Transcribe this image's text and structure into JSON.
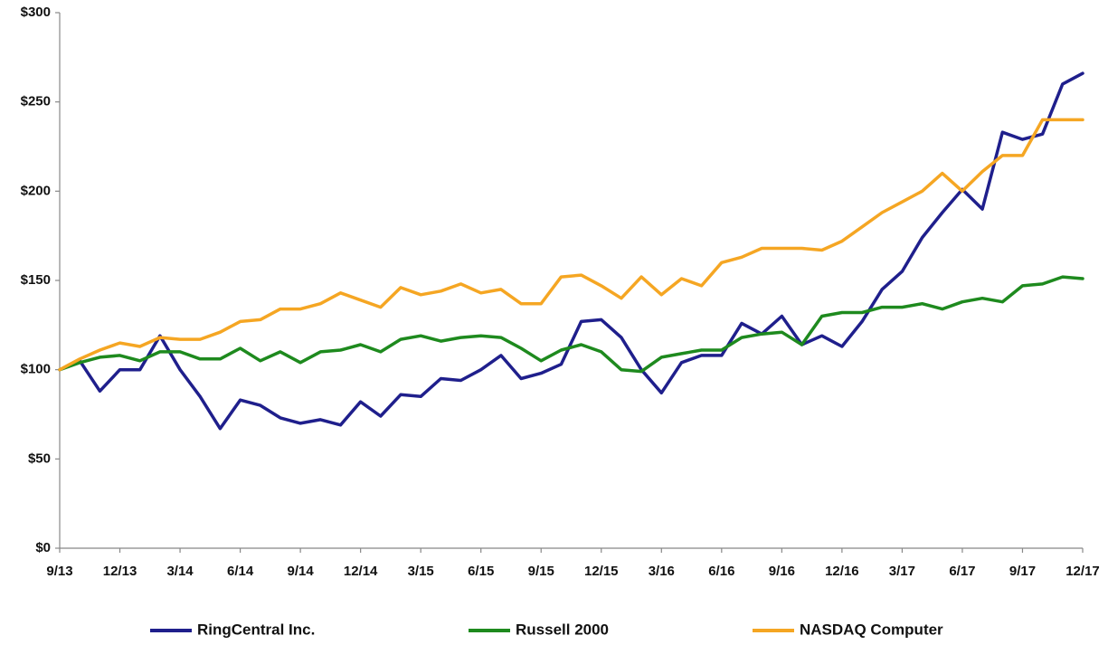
{
  "chart_data": {
    "type": "line",
    "categories": [
      "9/13",
      null,
      null,
      "12/13",
      null,
      null,
      "3/14",
      null,
      null,
      "6/14",
      null,
      null,
      "9/14",
      null,
      null,
      "12/14",
      null,
      null,
      "3/15",
      null,
      null,
      "6/15",
      null,
      null,
      "9/15",
      null,
      null,
      "12/15",
      null,
      null,
      "3/16",
      null,
      null,
      "6/16",
      null,
      null,
      "9/16",
      null,
      null,
      "12/16",
      null,
      null,
      "3/17",
      null,
      null,
      "6/17",
      null,
      null,
      "9/17",
      null,
      null,
      "12/17"
    ],
    "series": [
      {
        "name": "RingCentral Inc.",
        "color": "#1f1f8c",
        "values": [
          100,
          105,
          88,
          100,
          100,
          119,
          100,
          85,
          67,
          83,
          80,
          73,
          70,
          72,
          69,
          82,
          74,
          86,
          85,
          95,
          94,
          100,
          108,
          95,
          98,
          103,
          127,
          128,
          118,
          100,
          87,
          104,
          108,
          108,
          126,
          120,
          130,
          114,
          119,
          113,
          127,
          145,
          155,
          174,
          188,
          201,
          190,
          233,
          229,
          232,
          260,
          266
        ]
      },
      {
        "name": "Russell 2000",
        "color": "#1e8a1e",
        "values": [
          100,
          104,
          107,
          108,
          105,
          110,
          110,
          106,
          106,
          112,
          105,
          110,
          104,
          110,
          111,
          114,
          110,
          117,
          119,
          116,
          118,
          119,
          118,
          112,
          105,
          111,
          114,
          110,
          100,
          99,
          107,
          109,
          111,
          111,
          118,
          120,
          121,
          114,
          130,
          132,
          132,
          135,
          135,
          137,
          134,
          138,
          140,
          138,
          147,
          148,
          152,
          151
        ]
      },
      {
        "name": "NASDAQ Computer",
        "color": "#f5a623",
        "values": [
          100,
          106,
          111,
          115,
          113,
          118,
          117,
          117,
          121,
          127,
          128,
          134,
          134,
          137,
          143,
          139,
          135,
          146,
          142,
          144,
          148,
          143,
          145,
          137,
          137,
          152,
          153,
          147,
          140,
          152,
          142,
          151,
          147,
          160,
          163,
          168,
          168,
          168,
          167,
          172,
          180,
          188,
          194,
          200,
          210,
          200,
          211,
          220,
          220,
          240,
          240,
          240
        ]
      }
    ],
    "ylim": [
      0,
      300
    ],
    "yticks": [
      {
        "value": 0,
        "label": "$0"
      },
      {
        "value": 50,
        "label": "$50"
      },
      {
        "value": 100,
        "label": "$100"
      },
      {
        "value": 150,
        "label": "$150"
      },
      {
        "value": 200,
        "label": "$200"
      },
      {
        "value": 250,
        "label": "$250"
      },
      {
        "value": 300,
        "label": "$300"
      }
    ]
  }
}
